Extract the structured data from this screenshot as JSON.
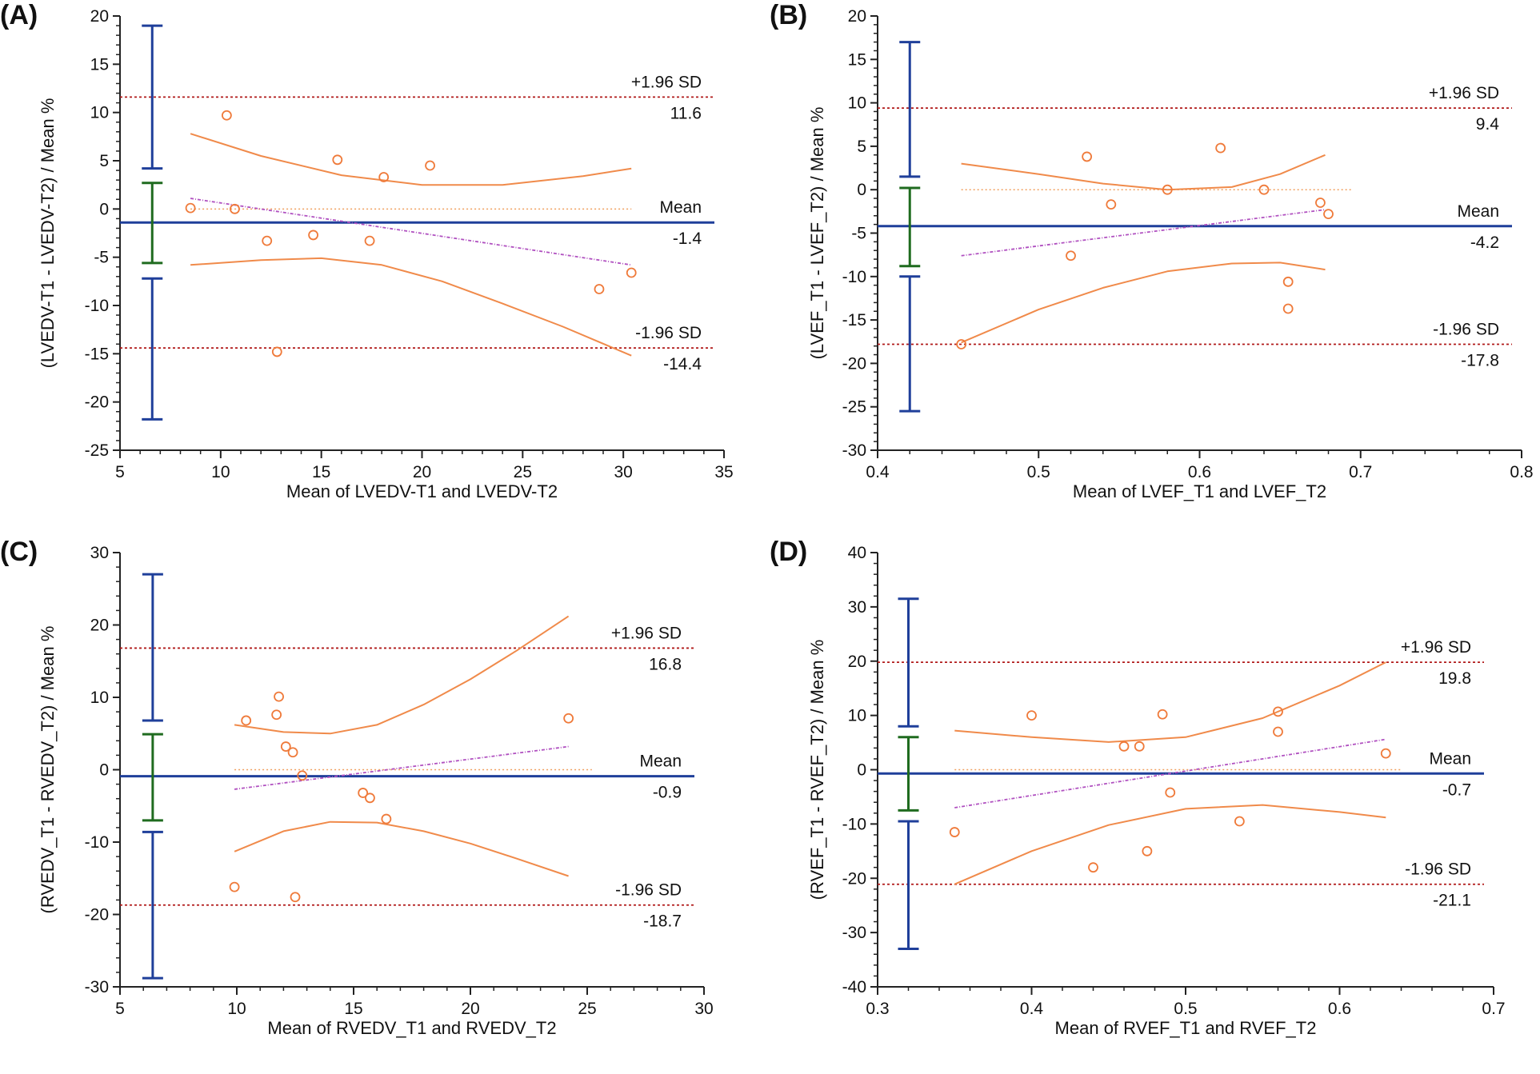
{
  "colors": {
    "axis": "#222222",
    "mean_line": "#1f3f9a",
    "limits": "#b01818",
    "zero_line": "#f0a060",
    "ci_curves": "#f08a4a",
    "regression": "#b050c0",
    "points": "#ef7a3a",
    "whisker_outer": "#1f3f9a",
    "whisker_mean": "#1f6b1f"
  },
  "chart_data": [
    {
      "panel": "(A)",
      "type": "scatter",
      "xlabel": "Mean of LVEDV-T1 and LVEDV-T2",
      "ylabel": "(LVEDV-T1 - LVEDV-T2) / Mean %",
      "xlim": [
        5,
        35
      ],
      "ylim": [
        -25,
        20
      ],
      "xticks": [
        5,
        10,
        15,
        20,
        25,
        30,
        35
      ],
      "xtick_labels": [
        "5",
        "10",
        "15",
        "20",
        "25",
        "30",
        "35"
      ],
      "yticks": [
        -25,
        -20,
        -15,
        -10,
        -5,
        0,
        5,
        10,
        15,
        20
      ],
      "ytick_labels": [
        "-25",
        "-20",
        "-15",
        "-10",
        "-5",
        "0",
        "5",
        "10",
        "15",
        "20"
      ],
      "points": [
        [
          8.5,
          0.1
        ],
        [
          10.3,
          9.7
        ],
        [
          10.7,
          0.0
        ],
        [
          12.3,
          -3.3
        ],
        [
          12.8,
          -14.8
        ],
        [
          14.6,
          -2.7
        ],
        [
          15.8,
          5.1
        ],
        [
          17.4,
          -3.3
        ],
        [
          18.1,
          3.3
        ],
        [
          20.4,
          4.5
        ],
        [
          28.8,
          -8.3
        ],
        [
          30.4,
          -6.6
        ]
      ],
      "mean": -1.4,
      "upper_limit": 11.6,
      "lower_limit": -14.4,
      "mean_label": "Mean",
      "mean_value_label": "-1.4",
      "upper_label": "+1.96 SD",
      "upper_value_label": "11.6",
      "lower_label": "-1.96 SD",
      "lower_value_label": "-14.4",
      "x_range": [
        8.5,
        30.4
      ],
      "regression": [
        [
          8.5,
          1.1
        ],
        [
          30.4,
          -5.8
        ]
      ],
      "ci_upper": [
        [
          8.5,
          7.8
        ],
        [
          12,
          5.5
        ],
        [
          16,
          3.5
        ],
        [
          20,
          2.5
        ],
        [
          24,
          2.5
        ],
        [
          28,
          3.4
        ],
        [
          30.4,
          4.2
        ]
      ],
      "ci_lower": [
        [
          8.5,
          -5.8
        ],
        [
          12,
          -5.3
        ],
        [
          15,
          -5.1
        ],
        [
          18,
          -5.8
        ],
        [
          21,
          -7.5
        ],
        [
          24,
          -9.8
        ],
        [
          27,
          -12.2
        ],
        [
          30.4,
          -15.2
        ]
      ],
      "whisker_x": 6.6,
      "whisker_upper": [
        4.2,
        19.0
      ],
      "whisker_mean": [
        -5.6,
        2.7
      ],
      "whisker_lower": [
        -21.8,
        -7.2
      ]
    },
    {
      "panel": "(B)",
      "type": "scatter",
      "xlabel": "Mean of LVEF_T1 and LVEF_T2",
      "ylabel": "(LVEF_T1 - LVEF_T2) / Mean %",
      "xlim": [
        0.4,
        0.8
      ],
      "ylim": [
        -30,
        20
      ],
      "xticks": [
        0.4,
        0.5,
        0.6,
        0.7,
        0.8
      ],
      "xtick_labels": [
        "0.4",
        "0.5",
        "0.6",
        "0.7",
        "0.8"
      ],
      "yticks": [
        -30,
        -25,
        -20,
        -15,
        -10,
        -5,
        0,
        5,
        10,
        15,
        20
      ],
      "ytick_labels": [
        "-30",
        "-25",
        "-20",
        "-15",
        "-10",
        "-5",
        "0",
        "5",
        "10",
        "15",
        "20"
      ],
      "points": [
        [
          0.452,
          -17.8
        ],
        [
          0.52,
          -7.6
        ],
        [
          0.53,
          3.8
        ],
        [
          0.545,
          -1.7
        ],
        [
          0.58,
          0.0
        ],
        [
          0.613,
          4.8
        ],
        [
          0.64,
          0.0
        ],
        [
          0.655,
          -10.6
        ],
        [
          0.655,
          -13.7
        ],
        [
          0.675,
          -1.5
        ],
        [
          0.68,
          -2.8
        ]
      ],
      "mean": -4.2,
      "upper_limit": 9.4,
      "lower_limit": -17.8,
      "mean_label": "Mean",
      "mean_value_label": "-4.2",
      "upper_label": "+1.96 SD",
      "upper_value_label": "9.4",
      "lower_label": "-1.96 SD",
      "lower_value_label": "-17.8",
      "x_range": [
        0.452,
        0.695
      ],
      "regression": [
        [
          0.452,
          -7.6
        ],
        [
          0.678,
          -2.3
        ]
      ],
      "ci_upper": [
        [
          0.452,
          3.0
        ],
        [
          0.5,
          1.8
        ],
        [
          0.54,
          0.7
        ],
        [
          0.58,
          0.0
        ],
        [
          0.62,
          0.3
        ],
        [
          0.65,
          1.8
        ],
        [
          0.678,
          4.0
        ]
      ],
      "ci_lower": [
        [
          0.452,
          -17.6
        ],
        [
          0.5,
          -13.8
        ],
        [
          0.54,
          -11.3
        ],
        [
          0.58,
          -9.4
        ],
        [
          0.62,
          -8.5
        ],
        [
          0.65,
          -8.4
        ],
        [
          0.678,
          -9.2
        ]
      ],
      "whisker_x": 0.42,
      "whisker_upper": [
        1.5,
        17.0
      ],
      "whisker_mean": [
        -8.8,
        0.2
      ],
      "whisker_lower": [
        -25.5,
        -10.0
      ]
    },
    {
      "panel": "(C)",
      "type": "scatter",
      "xlabel": "Mean of RVEDV_T1 and RVEDV_T2",
      "ylabel": "(RVEDV_T1 - RVEDV_T2) / Mean %",
      "xlim": [
        5,
        30
      ],
      "ylim": [
        -30,
        30
      ],
      "xticks": [
        5,
        10,
        15,
        20,
        25,
        30
      ],
      "xtick_labels": [
        "5",
        "10",
        "15",
        "20",
        "25",
        "30"
      ],
      "yticks": [
        -30,
        -20,
        -10,
        0,
        10,
        20,
        30
      ],
      "ytick_labels": [
        "-30",
        "-20",
        "-10",
        "0",
        "10",
        "20",
        "30"
      ],
      "points": [
        [
          9.9,
          -16.2
        ],
        [
          10.4,
          6.8
        ],
        [
          11.7,
          7.6
        ],
        [
          11.8,
          10.1
        ],
        [
          12.1,
          3.2
        ],
        [
          12.4,
          2.4
        ],
        [
          12.5,
          -17.6
        ],
        [
          12.8,
          -0.8
        ],
        [
          15.4,
          -3.2
        ],
        [
          15.7,
          -3.9
        ],
        [
          16.4,
          -6.8
        ],
        [
          24.2,
          7.1
        ]
      ],
      "mean": -0.9,
      "upper_limit": 16.8,
      "lower_limit": -18.7,
      "mean_label": "Mean",
      "mean_value_label": "-0.9",
      "upper_label": "+1.96 SD",
      "upper_value_label": "16.8",
      "lower_label": "-1.96 SD",
      "lower_value_label": "-18.7",
      "x_range": [
        9.9,
        25.2
      ],
      "regression": [
        [
          9.9,
          -2.7
        ],
        [
          24.2,
          3.2
        ]
      ],
      "ci_upper": [
        [
          9.9,
          6.2
        ],
        [
          12,
          5.2
        ],
        [
          14,
          5.0
        ],
        [
          16,
          6.2
        ],
        [
          18,
          9.0
        ],
        [
          20,
          12.5
        ],
        [
          22,
          16.5
        ],
        [
          24.2,
          21.2
        ]
      ],
      "ci_lower": [
        [
          9.9,
          -11.3
        ],
        [
          12,
          -8.5
        ],
        [
          14,
          -7.2
        ],
        [
          16,
          -7.3
        ],
        [
          18,
          -8.5
        ],
        [
          20,
          -10.2
        ],
        [
          22,
          -12.3
        ],
        [
          24.2,
          -14.7
        ]
      ],
      "whisker_x": 6.4,
      "whisker_upper": [
        6.8,
        27.0
      ],
      "whisker_mean": [
        -7.0,
        4.9
      ],
      "whisker_lower": [
        -28.8,
        -8.6
      ]
    },
    {
      "panel": "(D)",
      "type": "scatter",
      "xlabel": "Mean of RVEF_T1 and RVEF_T2",
      "ylabel": "(RVEF_T1 - RVEF_T2) / Mean %",
      "xlim": [
        0.3,
        0.7
      ],
      "ylim": [
        -40,
        40
      ],
      "xticks": [
        0.3,
        0.4,
        0.5,
        0.6,
        0.7
      ],
      "xtick_labels": [
        "0.3",
        "0.4",
        "0.5",
        "0.6",
        "0.7"
      ],
      "yticks": [
        -40,
        -30,
        -20,
        -10,
        0,
        10,
        20,
        30,
        40
      ],
      "ytick_labels": [
        "-40",
        "-30",
        "-20",
        "-10",
        "0",
        "10",
        "20",
        "30",
        "40"
      ],
      "points": [
        [
          0.35,
          -11.5
        ],
        [
          0.4,
          10.0
        ],
        [
          0.44,
          -18.0
        ],
        [
          0.46,
          4.3
        ],
        [
          0.47,
          4.3
        ],
        [
          0.475,
          -15.0
        ],
        [
          0.485,
          10.2
        ],
        [
          0.49,
          -4.2
        ],
        [
          0.535,
          -9.5
        ],
        [
          0.56,
          10.7
        ],
        [
          0.56,
          7.0
        ],
        [
          0.63,
          3.0
        ]
      ],
      "mean": -0.7,
      "upper_limit": 19.8,
      "lower_limit": -21.1,
      "mean_label": "Mean",
      "mean_value_label": "-0.7",
      "upper_label": "+1.96 SD",
      "upper_value_label": "19.8",
      "lower_label": "-1.96 SD",
      "lower_value_label": "-21.1",
      "x_range": [
        0.35,
        0.64
      ],
      "regression": [
        [
          0.35,
          -7.0
        ],
        [
          0.63,
          5.6
        ]
      ],
      "ci_upper": [
        [
          0.35,
          7.2
        ],
        [
          0.4,
          6.0
        ],
        [
          0.45,
          5.1
        ],
        [
          0.5,
          6.0
        ],
        [
          0.55,
          9.5
        ],
        [
          0.6,
          15.5
        ],
        [
          0.63,
          19.8
        ]
      ],
      "ci_lower": [
        [
          0.35,
          -21.1
        ],
        [
          0.4,
          -15.0
        ],
        [
          0.45,
          -10.2
        ],
        [
          0.5,
          -7.2
        ],
        [
          0.55,
          -6.5
        ],
        [
          0.6,
          -7.8
        ],
        [
          0.63,
          -8.8
        ]
      ],
      "whisker_x": 0.32,
      "whisker_upper": [
        8.0,
        31.5
      ],
      "whisker_mean": [
        -7.5,
        6.0
      ],
      "whisker_lower": [
        -33.0,
        -9.5
      ]
    }
  ]
}
